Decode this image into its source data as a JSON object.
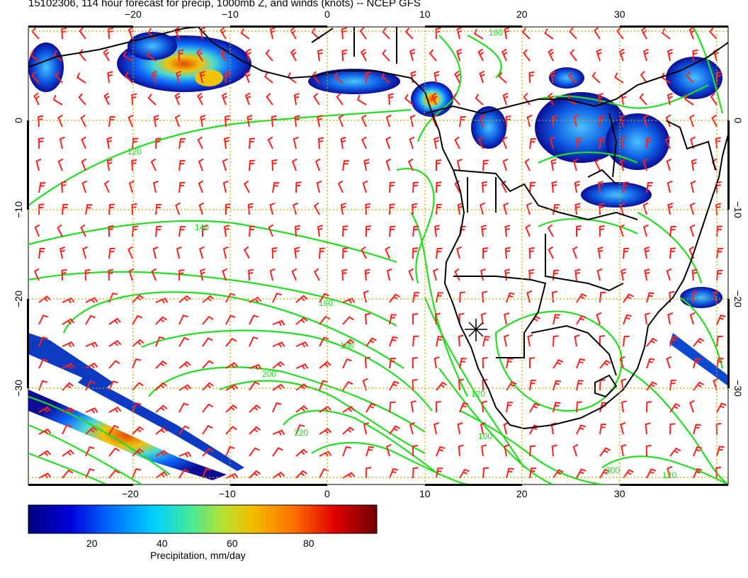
{
  "title": "15102306, 114 hour forecast for precip, 1000mb Z, and winds (knots) -- NCEP GFS",
  "map": {
    "lon_range": [
      -30,
      42
    ],
    "lat_range": [
      -40,
      10
    ],
    "lon_ticks": [
      "−20",
      "−10",
      "0",
      "10",
      "20",
      "30"
    ],
    "lat_ticks": [
      "0",
      "−10",
      "−20",
      "−30"
    ],
    "contour_labels": [
      "120",
      "140",
      "160",
      "180",
      "200",
      "220",
      "120",
      "100",
      "200",
      "160",
      "120"
    ],
    "contour_color": "#22dd22",
    "barb_color": "#ff2020",
    "grid_color": "#c8a400"
  },
  "colorbar": {
    "title": "Precipitation, mm/day",
    "ticks": [
      "20",
      "40",
      "60",
      "80"
    ],
    "range": [
      0,
      100
    ],
    "colors": [
      "#00007a",
      "#0000dd",
      "#0070ff",
      "#00d0ff",
      "#40e8a0",
      "#b8e030",
      "#f0c000",
      "#ff7000",
      "#e00000",
      "#700000"
    ]
  }
}
